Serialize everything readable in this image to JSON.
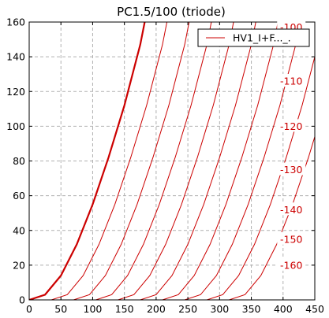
{
  "chart_data": {
    "type": "line",
    "title": "PC1.5/100 (triode)",
    "xlabel": "",
    "ylabel": "",
    "xlim": [
      0,
      450
    ],
    "ylim": [
      0,
      160
    ],
    "xticks": [
      0,
      50,
      100,
      150,
      200,
      250,
      300,
      350,
      400,
      450
    ],
    "yticks": [
      0,
      20,
      40,
      60,
      80,
      100,
      120,
      140,
      160
    ],
    "grid": true,
    "grid_style": "dashed",
    "legend_position": "top-right",
    "legend": [
      {
        "label": "HV1_I+F..._.",
        "color": "#cc0000"
      }
    ],
    "line_color": "#cc0000",
    "bold_series": {
      "name": "HV1_I+F..._.",
      "x": [
        0,
        25,
        50,
        75,
        100,
        125,
        150,
        175,
        182
      ],
      "y": [
        0,
        3,
        14,
        32,
        55,
        82,
        112,
        147,
        160
      ]
    },
    "family": {
      "offsets": [
        0,
        35,
        70,
        105,
        140,
        175,
        210,
        245,
        280,
        315
      ],
      "shape_x": [
        0,
        25,
        50,
        75,
        100,
        125,
        150,
        175,
        182
      ],
      "shape_y": [
        0,
        3,
        14,
        32,
        55,
        82,
        112,
        147,
        160
      ]
    },
    "curve_labels": [
      {
        "text": "-100",
        "x": 413,
        "y": 157
      },
      {
        "text": "-110",
        "x": 413,
        "y": 126
      },
      {
        "text": "-120",
        "x": 413,
        "y": 100
      },
      {
        "text": "-130",
        "x": 413,
        "y": 75
      },
      {
        "text": "-140",
        "x": 413,
        "y": 52
      },
      {
        "text": "-150",
        "x": 413,
        "y": 35
      },
      {
        "text": "-160",
        "x": 413,
        "y": 20
      }
    ]
  }
}
